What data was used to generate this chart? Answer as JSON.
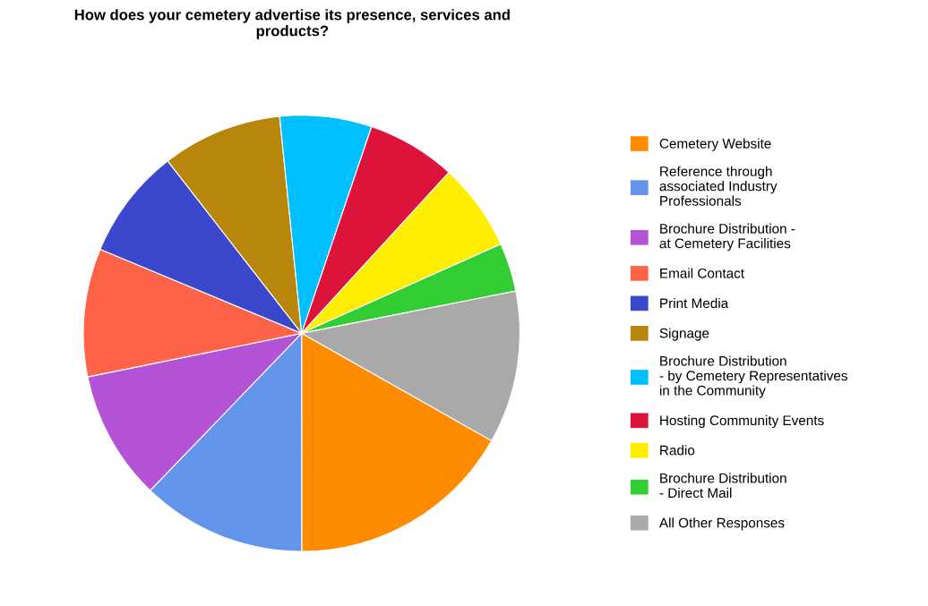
{
  "chart_data": {
    "type": "pie",
    "title": "How does your cemetery advertise its presence, services and\nproducts?",
    "categories": [
      "Cemetery Website",
      "Reference through\nassociated Industry\nProfessionals",
      "Brochure Distribution -\nat Cemetery Facilities",
      "Email Contact",
      "Print Media",
      "Signage",
      "Brochure Distribution\n- by Cemetery Representatives\nin the Community",
      "Hosting Community Events",
      "Radio",
      "Brochure Distribution\n- Direct Mail",
      "All Other Responses"
    ],
    "values": [
      16.8,
      12.2,
      9.6,
      9.5,
      8.2,
      8.9,
      6.8,
      6.6,
      6.5,
      3.6,
      11.3
    ],
    "colors": [
      "#ff8c00",
      "#6495ed",
      "#b453d6",
      "#ff6347",
      "#3b48cc",
      "#b8860b",
      "#00bfff",
      "#dc143c",
      "#ffee00",
      "#32cd32",
      "#a9a9a9"
    ],
    "legend": "right"
  }
}
